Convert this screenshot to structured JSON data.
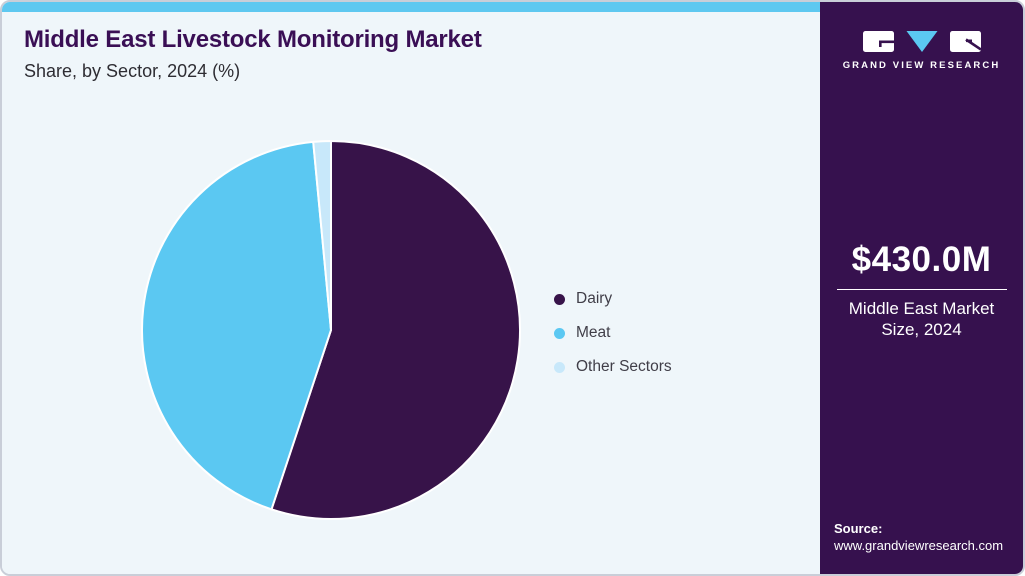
{
  "header": {
    "title": "Middle East Livestock Monitoring Market",
    "subtitle": "Share, by Sector, 2024 (%)"
  },
  "chart_data": {
    "type": "pie",
    "title": "Middle East Livestock Monitoring Market Share, by Sector, 2024 (%)",
    "categories": [
      "Dairy",
      "Meat",
      "Other Sectors"
    ],
    "values": [
      55.1,
      43.4,
      1.5
    ],
    "unit": "%",
    "colors": [
      "#371349",
      "#5bc8f2",
      "#c8e8fa"
    ],
    "start_angle_deg": 0,
    "direction": "clockwise",
    "legend_position": "right",
    "slice_separator_color": "#ffffff"
  },
  "sidebar": {
    "logo": {
      "brand": "GRAND VIEW RESEARCH",
      "icon_blocks": [
        "g-block",
        "v-triangle",
        "r-block"
      ]
    },
    "stat": {
      "value": "$430.0M",
      "caption_line1": "Middle East Market",
      "caption_line2": "Size, 2024"
    },
    "source": {
      "label": "Source:",
      "url": "www.grandviewresearch.com"
    }
  },
  "theme": {
    "card_background": "#eff6fa",
    "top_strip": "#5ec8f0",
    "title_color": "#3a0f55",
    "subtitle_color": "#2e2d33",
    "legend_text_color": "#403e48",
    "sidebar_background": "#36114e",
    "sidebar_text": "#ffffff",
    "card_border": "#c9ced8",
    "logo_triangle": "#5bc8f2"
  }
}
